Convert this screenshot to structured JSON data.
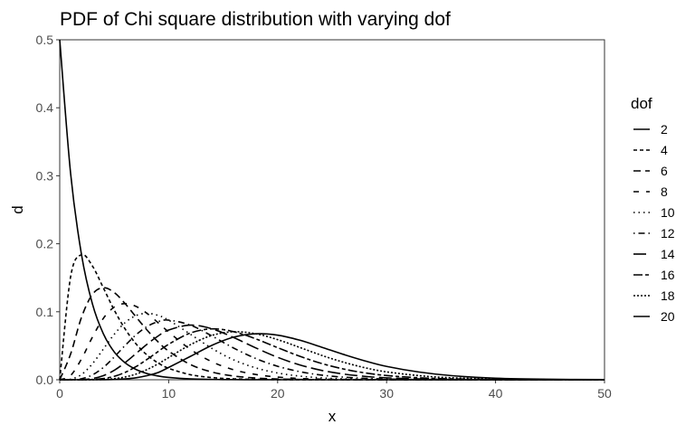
{
  "chart_data": {
    "type": "line",
    "title": "PDF of Chi square distribution with varying dof",
    "xlabel": "x",
    "ylabel": "d",
    "xlim": [
      0,
      50
    ],
    "ylim": [
      0,
      0.5
    ],
    "x_ticks": [
      "0",
      "10",
      "20",
      "30",
      "40",
      "50"
    ],
    "y_ticks": [
      "0.0",
      "0.1",
      "0.2",
      "0.3",
      "0.4",
      "0.5"
    ],
    "grid": false,
    "legend_title": "dof",
    "legend_position": "right",
    "line_color": "#000000",
    "x": [
      0,
      1,
      2,
      3,
      4,
      5,
      6,
      7,
      8,
      9,
      10,
      12,
      14,
      16,
      18,
      20,
      22,
      24,
      26,
      28,
      30,
      33,
      36,
      40,
      45,
      50
    ],
    "series": [
      {
        "name": "2",
        "dash": "solid",
        "values": [
          0.5,
          0.3033,
          0.1839,
          0.1116,
          0.0677,
          0.041,
          0.0249,
          0.0151,
          0.0092,
          0.0056,
          0.0034,
          0.0012,
          0.0005,
          0.0002,
          0.0001,
          0.0,
          0.0,
          0.0,
          0.0,
          0.0,
          0.0,
          0.0,
          0.0,
          0.0,
          0.0,
          0.0
        ]
      },
      {
        "name": "4",
        "dash": "short-dash",
        "values": [
          0.0,
          0.1516,
          0.1839,
          0.1673,
          0.1353,
          0.1026,
          0.0747,
          0.0528,
          0.0366,
          0.025,
          0.0168,
          0.0074,
          0.0032,
          0.0013,
          0.0006,
          0.0002,
          0.0001,
          0.0,
          0.0,
          0.0,
          0.0,
          0.0,
          0.0,
          0.0,
          0.0,
          0.0
        ]
      },
      {
        "name": "6",
        "dash": "dash",
        "values": [
          0.0,
          0.0379,
          0.0919,
          0.1255,
          0.1353,
          0.1283,
          0.112,
          0.0925,
          0.0733,
          0.0562,
          0.0421,
          0.0223,
          0.0112,
          0.0054,
          0.0025,
          0.0011,
          0.0005,
          0.0002,
          0.0001,
          0.0,
          0.0,
          0.0,
          0.0,
          0.0,
          0.0,
          0.0
        ]
      },
      {
        "name": "8",
        "dash": "dash-gap",
        "values": [
          0.0,
          0.0063,
          0.0307,
          0.0627,
          0.0902,
          0.1069,
          0.112,
          0.1079,
          0.0977,
          0.0843,
          0.0702,
          0.0446,
          0.0262,
          0.0145,
          0.0077,
          0.0039,
          0.0019,
          0.0009,
          0.0004,
          0.0002,
          0.0001,
          0.0,
          0.0,
          0.0,
          0.0,
          0.0
        ]
      },
      {
        "name": "10",
        "dash": "dotted",
        "values": [
          0.0,
          0.0008,
          0.0077,
          0.0235,
          0.0451,
          0.0668,
          0.084,
          0.0944,
          0.0977,
          0.0948,
          0.0877,
          0.0669,
          0.0458,
          0.029,
          0.0174,
          0.0099,
          0.0054,
          0.0028,
          0.0014,
          0.0007,
          0.0003,
          0.0001,
          0.0,
          0.0,
          0.0,
          0.0
        ]
      },
      {
        "name": "12",
        "dash": "dot-dash",
        "values": [
          0.0,
          0.0001,
          0.0015,
          0.0071,
          0.018,
          0.0334,
          0.0504,
          0.0661,
          0.0781,
          0.0853,
          0.0877,
          0.0803,
          0.0641,
          0.0463,
          0.0312,
          0.0198,
          0.012,
          0.0069,
          0.0039,
          0.0021,
          0.0011,
          0.0004,
          0.0001,
          0.0,
          0.0,
          0.0
        ]
      },
      {
        "name": "14",
        "dash": "long-dash",
        "values": [
          0.0,
          0.0,
          0.0003,
          0.0018,
          0.006,
          0.0139,
          0.0252,
          0.0385,
          0.0521,
          0.064,
          0.0731,
          0.0803,
          0.0748,
          0.0618,
          0.0468,
          0.033,
          0.022,
          0.0139,
          0.0085,
          0.005,
          0.0028,
          0.0012,
          0.0005,
          0.0001,
          0.0,
          0.0
        ]
      },
      {
        "name": "16",
        "dash": "two-dash",
        "values": [
          0.0,
          0.0,
          0.0,
          0.0004,
          0.0017,
          0.005,
          0.0108,
          0.0193,
          0.0298,
          0.0411,
          0.0522,
          0.0688,
          0.0748,
          0.0706,
          0.0601,
          0.0472,
          0.0347,
          0.0241,
          0.016,
          0.0101,
          0.0062,
          0.0029,
          0.0013,
          0.0004,
          0.0001,
          0.0
        ]
      },
      {
        "name": "18",
        "dash": "dense-dot",
        "values": [
          0.0,
          0.0,
          0.0,
          0.0001,
          0.0004,
          0.0016,
          0.0041,
          0.0083,
          0.0149,
          0.0231,
          0.0326,
          0.0516,
          0.0654,
          0.0706,
          0.0676,
          0.059,
          0.0477,
          0.0361,
          0.026,
          0.0177,
          0.0116,
          0.006,
          0.0029,
          0.0011,
          0.0003,
          0.0001
        ]
      },
      {
        "name": "20",
        "dash": "solid",
        "values": [
          0.0,
          0.0,
          0.0,
          0.0,
          0.0001,
          0.0004,
          0.0012,
          0.0029,
          0.006,
          0.0104,
          0.0181,
          0.0344,
          0.0509,
          0.0628,
          0.0676,
          0.0656,
          0.0583,
          0.0481,
          0.0375,
          0.0278,
          0.0196,
          0.0113,
          0.006,
          0.0023,
          0.0007,
          0.0002
        ]
      }
    ]
  }
}
